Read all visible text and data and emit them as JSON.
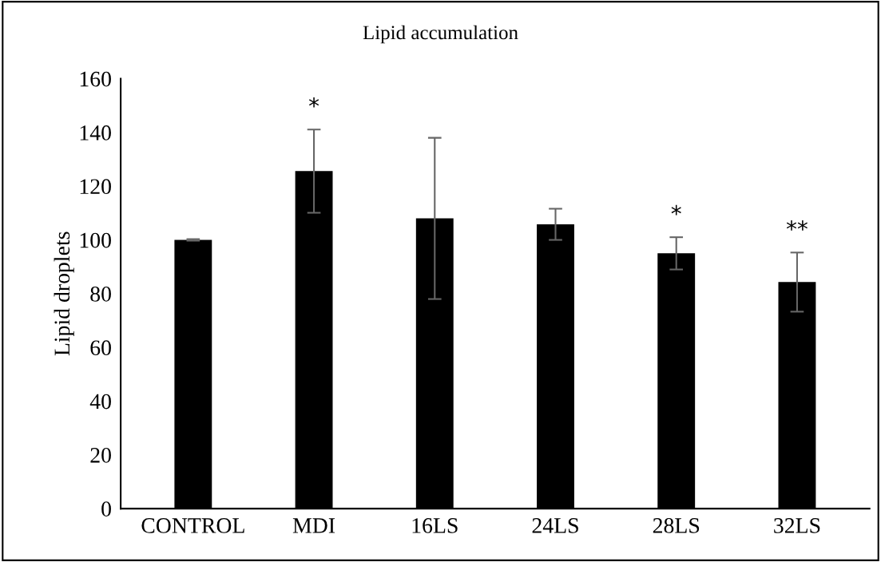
{
  "chart_data": {
    "type": "bar",
    "title": "Lipid accumulation",
    "ylabel": "Lipid droplets",
    "categories": [
      "CONTROL",
      "MDI",
      "16LS",
      "24LS",
      "28LS",
      "32LS"
    ],
    "values": [
      100,
      125.6,
      108,
      105.8,
      95,
      84.3
    ],
    "errors": [
      0.3,
      15.5,
      30,
      5.8,
      6,
      11
    ],
    "color": "#000000",
    "ylim": [
      0,
      160
    ],
    "yticks": [
      0,
      20,
      40,
      60,
      80,
      100,
      120,
      140,
      160
    ],
    "grid": false,
    "legend": false,
    "annotations": [
      {
        "text": "*",
        "x": "MDI",
        "y": 141.1
      },
      {
        "text": "*",
        "x": "28LS",
        "y": 101
      },
      {
        "text": "**",
        "x": "32LS",
        "y": 95.3
      }
    ]
  }
}
